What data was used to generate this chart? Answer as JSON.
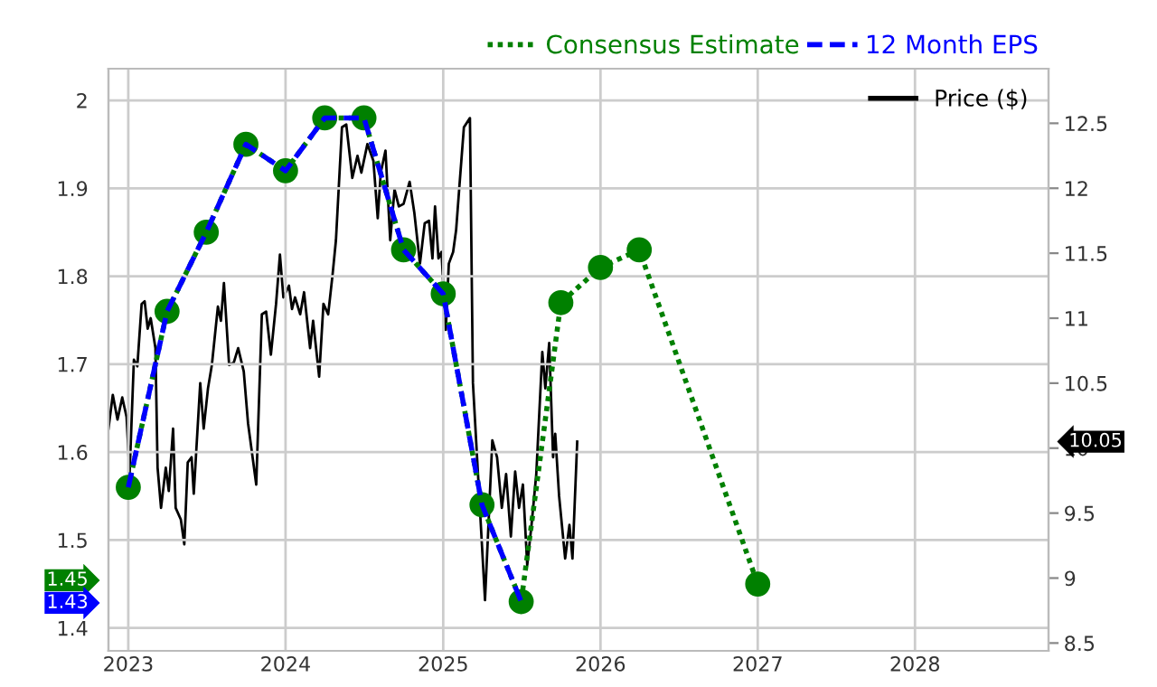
{
  "chart_data": {
    "type": "line",
    "xlim": [
      "2022-11-16",
      "2028-11-06"
    ],
    "xticks": [
      {
        "value": "2023-01-01",
        "label": "2023"
      },
      {
        "value": "2024-01-01",
        "label": "2024"
      },
      {
        "value": "2025-01-01",
        "label": "2025"
      },
      {
        "value": "2026-01-01",
        "label": "2026"
      },
      {
        "value": "2027-01-01",
        "label": "2027"
      },
      {
        "value": "2028-01-01",
        "label": "2028"
      }
    ],
    "ylim": [
      1.374,
      2.036
    ],
    "yticks": [
      1.4,
      1.5,
      1.6,
      1.7,
      1.8,
      1.9,
      2
    ],
    "y2lim": [
      8.44,
      12.92
    ],
    "y2ticks": [
      8.5,
      9,
      9.5,
      10,
      10.5,
      11,
      11.5,
      12,
      12.5
    ],
    "grid": true,
    "legend": "top right",
    "series": [
      {
        "name": "Consensus Estimate",
        "color": "#008000",
        "line_style": "dotted",
        "marker": "circle",
        "x": [
          "2023-01-01",
          "2023-04-01",
          "2023-07-01",
          "2023-10-01",
          "2024-01-01",
          "2024-04-01",
          "2024-07-01",
          "2024-10-01",
          "2025-01-01",
          "2025-04-01",
          "2025-07-01",
          "2025-10-01",
          "2026-01-01",
          "2026-04-01",
          "2027-01-01"
        ],
        "values": [
          1.56,
          1.76,
          1.85,
          1.95,
          1.92,
          1.98,
          1.98,
          1.83,
          1.78,
          1.54,
          1.43,
          1.77,
          1.81,
          1.83,
          1.45
        ]
      },
      {
        "name": "12 Month EPS",
        "color": "#0000ff",
        "line_style": "dashed",
        "marker": "none",
        "x": [
          "2023-01-01",
          "2023-04-01",
          "2023-07-01",
          "2023-10-01",
          "2024-01-01",
          "2024-04-01",
          "2024-07-01",
          "2024-10-01",
          "2025-01-01",
          "2025-04-01",
          "2025-07-01"
        ],
        "values": [
          1.56,
          1.76,
          1.85,
          1.95,
          1.92,
          1.98,
          1.98,
          1.83,
          1.78,
          1.54,
          1.43
        ]
      },
      {
        "name": "Price ($)",
        "color": "#000000",
        "line_style": "solid",
        "marker": "none",
        "axis": "y2",
        "x": [
          "2022-11-16",
          "2022-11-26",
          "2022-12-07",
          "2022-12-18",
          "2022-12-28",
          "2023-01-04",
          "2023-01-14",
          "2023-01-22",
          "2023-02-01",
          "2023-02-08",
          "2023-02-15",
          "2023-02-22",
          "2023-03-05",
          "2023-03-10",
          "2023-03-18",
          "2023-03-29",
          "2023-04-05",
          "2023-04-15",
          "2023-04-21",
          "2023-05-03",
          "2023-05-11",
          "2023-05-19",
          "2023-05-28",
          "2023-06-02",
          "2023-06-17",
          "2023-06-25",
          "2023-07-05",
          "2023-07-14",
          "2023-07-28",
          "2023-08-04",
          "2023-08-11",
          "2023-08-23",
          "2023-09-03",
          "2023-09-13",
          "2023-09-26",
          "2023-10-06",
          "2023-10-25",
          "2023-11-07",
          "2023-11-17",
          "2023-11-28",
          "2023-12-10",
          "2023-12-19",
          "2023-12-27",
          "2024-01-09",
          "2024-01-16",
          "2024-01-23",
          "2024-02-04",
          "2024-02-13",
          "2024-02-27",
          "2024-03-05",
          "2024-03-19",
          "2024-03-29",
          "2024-04-09",
          "2024-04-19",
          "2024-04-27",
          "2024-05-11",
          "2024-05-21",
          "2024-06-04",
          "2024-06-16",
          "2024-06-25",
          "2024-07-09",
          "2024-07-23",
          "2024-08-02",
          "2024-08-09",
          "2024-08-20",
          "2024-08-31",
          "2024-09-10",
          "2024-09-20",
          "2024-10-01",
          "2024-10-15",
          "2024-10-26",
          "2024-11-08",
          "2024-11-19",
          "2024-11-29",
          "2024-12-07",
          "2024-12-13",
          "2024-12-21",
          "2024-12-28",
          "2025-01-07",
          "2025-01-14",
          "2025-01-24",
          "2025-01-31",
          "2025-02-07",
          "2025-02-18",
          "2025-03-04",
          "2025-03-11",
          "2025-04-08",
          "2025-04-25",
          "2025-05-06",
          "2025-05-17",
          "2025-05-27",
          "2025-06-07",
          "2025-06-17",
          "2025-06-26",
          "2025-07-05",
          "2025-07-15",
          "2025-07-25",
          "2025-08-05",
          "2025-08-19",
          "2025-08-26",
          "2025-09-04",
          "2025-09-13",
          "2025-09-18",
          "2025-09-27",
          "2025-10-11",
          "2025-10-21",
          "2025-10-28",
          "2025-11-08"
        ],
        "values": [
          10.15,
          10.41,
          10.22,
          10.39,
          10.24,
          9.8,
          10.68,
          10.63,
          11.11,
          11.13,
          10.92,
          11.0,
          10.77,
          9.85,
          9.54,
          9.85,
          9.67,
          10.15,
          9.54,
          9.45,
          9.26,
          9.89,
          9.93,
          9.65,
          10.5,
          10.15,
          10.46,
          10.64,
          11.09,
          10.98,
          11.27,
          10.64,
          10.66,
          10.77,
          10.59,
          10.19,
          9.72,
          11.03,
          11.05,
          10.72,
          11.11,
          11.49,
          11.16,
          11.25,
          11.07,
          11.16,
          11.03,
          11.2,
          10.77,
          10.98,
          10.55,
          11.11,
          11.03,
          11.33,
          11.6,
          12.47,
          12.49,
          12.08,
          12.25,
          12.12,
          12.34,
          12.21,
          11.77,
          12.12,
          12.29,
          11.6,
          11.99,
          11.86,
          11.88,
          12.05,
          11.81,
          11.42,
          11.73,
          11.75,
          11.46,
          11.86,
          11.46,
          11.51,
          10.91,
          11.42,
          11.51,
          11.68,
          11.99,
          12.47,
          12.54,
          10.5,
          8.83,
          10.06,
          9.93,
          9.54,
          9.8,
          9.32,
          9.82,
          9.54,
          9.72,
          9.1,
          9.41,
          9.8,
          10.74,
          10.46,
          10.81,
          9.93,
          10.11,
          9.63,
          9.15,
          9.41,
          9.15,
          10.05
        ]
      }
    ],
    "annotations": [
      "1.45",
      "1.43",
      "10.05"
    ]
  }
}
